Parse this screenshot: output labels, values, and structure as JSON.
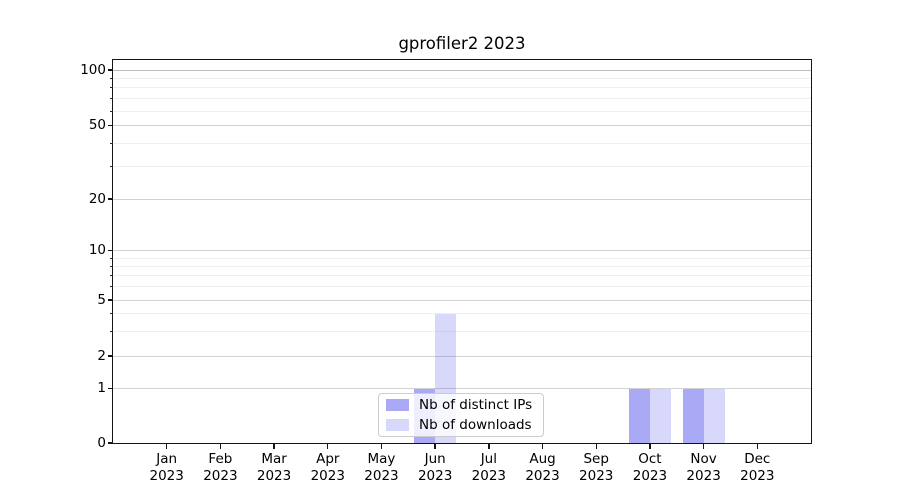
{
  "figure": {
    "title": "gprofiler2 2023"
  },
  "legend": {
    "items": [
      {
        "label": "Nb of distinct IPs",
        "color": "rgba(90,90,235,0.52)"
      },
      {
        "label": "Nb of downloads",
        "color": "rgba(90,90,235,0.24)"
      }
    ]
  },
  "chart_data": {
    "type": "bar",
    "title": "gprofiler2 2023",
    "categories": [
      "Jan 2023",
      "Feb 2023",
      "Mar 2023",
      "Apr 2023",
      "May 2023",
      "Jun 2023",
      "Jul 2023",
      "Aug 2023",
      "Sep 2023",
      "Oct 2023",
      "Nov 2023",
      "Dec 2023"
    ],
    "series": [
      {
        "name": "Nb of distinct IPs",
        "color": "rgba(90,90,235,0.52)",
        "values": [
          0,
          0,
          0,
          0,
          0,
          1,
          0,
          0,
          0,
          1,
          1,
          0
        ]
      },
      {
        "name": "Nb of downloads",
        "color": "rgba(90,90,235,0.24)",
        "values": [
          0,
          0,
          0,
          0,
          0,
          4,
          0,
          0,
          0,
          1,
          1,
          0
        ]
      }
    ],
    "yscale": "symlog",
    "ylim": [
      0,
      115
    ],
    "yticks": [
      0,
      1,
      2,
      5,
      10,
      20,
      50,
      100
    ],
    "yticks_minor": [
      3,
      4,
      6,
      7,
      8,
      9,
      30,
      40,
      60,
      70,
      80,
      90
    ],
    "xlabel": "",
    "ylabel": "",
    "grid": "both-horizontal",
    "legend_position": "lower-center-inside"
  },
  "grid_colors": {
    "major": "#d2d2d2",
    "major_top": "#bdbdbd",
    "minor": "#efefef"
  }
}
